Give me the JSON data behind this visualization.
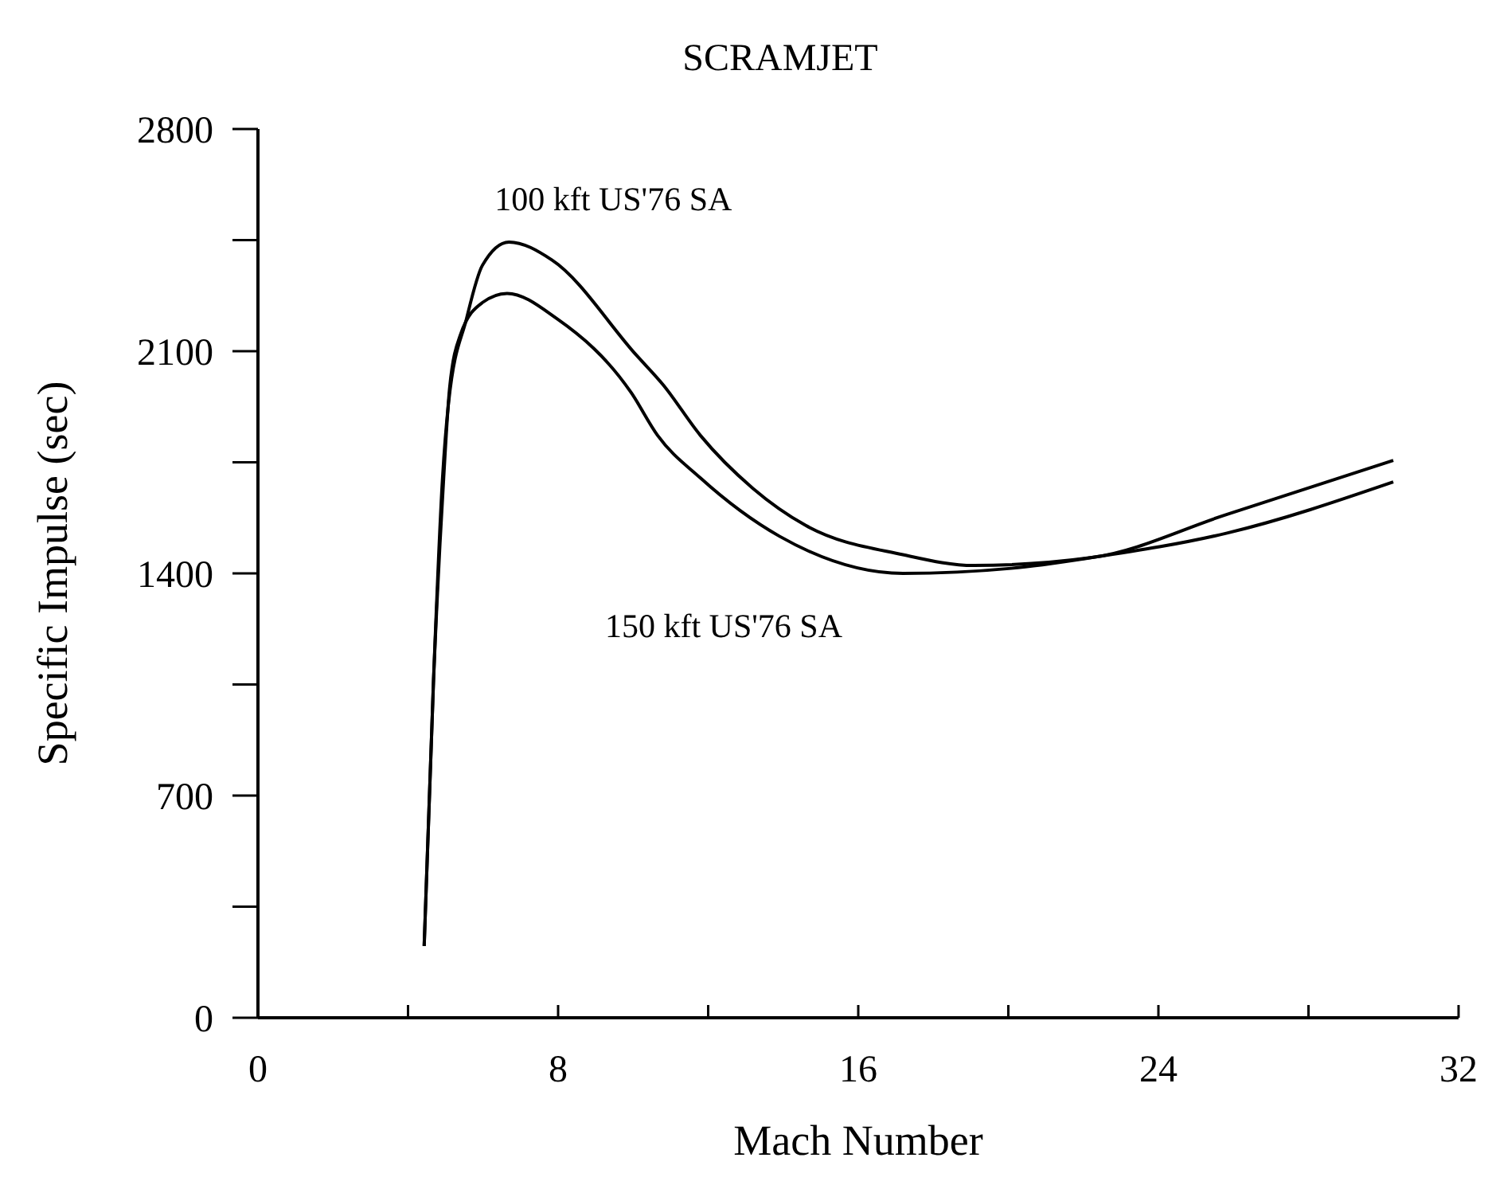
{
  "chart_data": {
    "type": "line",
    "title": "SCRAMJET",
    "xlabel": "Mach Number",
    "ylabel": "Specific Impulse (sec)",
    "xlim": [
      0,
      32
    ],
    "xticks": [
      0,
      {
        "value": 4,
        "label": null
      },
      8,
      {
        "value": 12,
        "label": null
      },
      16,
      {
        "value": 20,
        "label": null
      },
      24,
      {
        "value": 28,
        "label": null
      },
      32
    ],
    "ylim": [
      0,
      2800
    ],
    "yticks": [
      0,
      {
        "value": 350,
        "label": null
      },
      700,
      {
        "value": 1050,
        "label": null
      },
      1400,
      {
        "value": 1750,
        "label": null
      },
      2100,
      {
        "value": 2450,
        "label": null
      },
      2800
    ],
    "line_style": "solid",
    "series": [
      {
        "name": "100 kft US'76 SA",
        "color": "#000000",
        "x": [
          4.43,
          4.68,
          4.92,
          5.08,
          5.56,
          5.98,
          6.69,
          7.84,
          10.09,
          10.8,
          11.79,
          13.19,
          14.6,
          17.19,
          19.08,
          22.23,
          25.83,
          30.26
        ],
        "values": [
          226,
          1065,
          1701,
          1937,
          2203,
          2370,
          2444,
          2387,
          2087,
          1994,
          1835,
          1668,
          1551,
          1459,
          1425,
          1450,
          1586,
          1756
        ]
      },
      {
        "name": "150 kft US'76 SA",
        "color": "#000000",
        "x": [
          4.43,
          4.68,
          4.95,
          5.11,
          5.4,
          5.98,
          6.64,
          7.96,
          9.95,
          10.65,
          11.79,
          13.9,
          17.19,
          20.08,
          22.23,
          25.83,
          30.26
        ],
        "values": [
          226,
          1065,
          1701,
          1986,
          2153,
          2253,
          2282,
          2203,
          1969,
          1835,
          1701,
          1517,
          1400,
          1416,
          1450,
          1527,
          1688
        ]
      }
    ]
  }
}
